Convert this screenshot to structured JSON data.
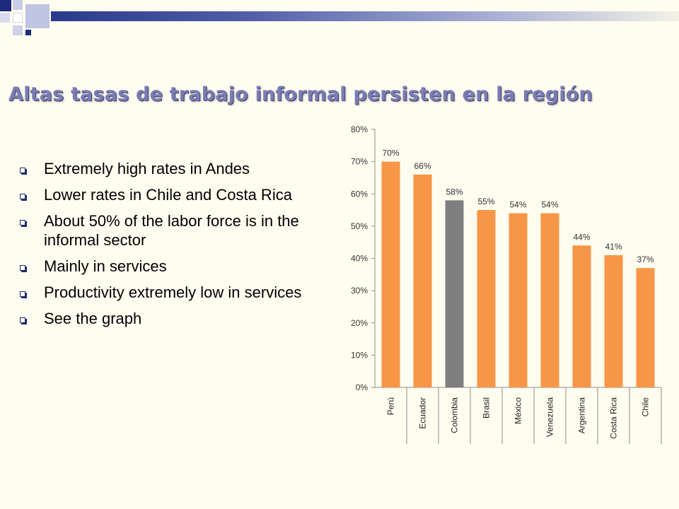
{
  "slide": {
    "title": "Altas tasas de trabajo informal persisten en la región",
    "bullets": [
      "Extremely high rates in Andes",
      "Lower rates in Chile and Costa Rica",
      "About 50% of the labor force is in the informal sector",
      "Mainly in services",
      "Productivity extremely low in services",
      "See the graph"
    ],
    "colors": {
      "title": "#7a7db4",
      "bar": "#f79646",
      "highlight_bar": "#7f7f7f",
      "bullet": "#1f2a6b"
    }
  },
  "chart_data": {
    "type": "bar",
    "categories": [
      "Perú",
      "Ecuador",
      "Colombia",
      "Brasil",
      "México",
      "Venezuela",
      "Argentina",
      "Costa Rica",
      "Chile"
    ],
    "values": [
      70,
      66,
      58,
      55,
      54,
      54,
      44,
      41,
      37
    ],
    "data_labels": [
      "70%",
      "66%",
      "58%",
      "55%",
      "54%",
      "54%",
      "44%",
      "41%",
      "37%"
    ],
    "highlight_category": "Colombia",
    "ylim": [
      0,
      80
    ],
    "yticks": [
      "0%",
      "10%",
      "20%",
      "30%",
      "40%",
      "50%",
      "60%",
      "70%",
      "80%"
    ],
    "grid": false,
    "legend": "none"
  }
}
